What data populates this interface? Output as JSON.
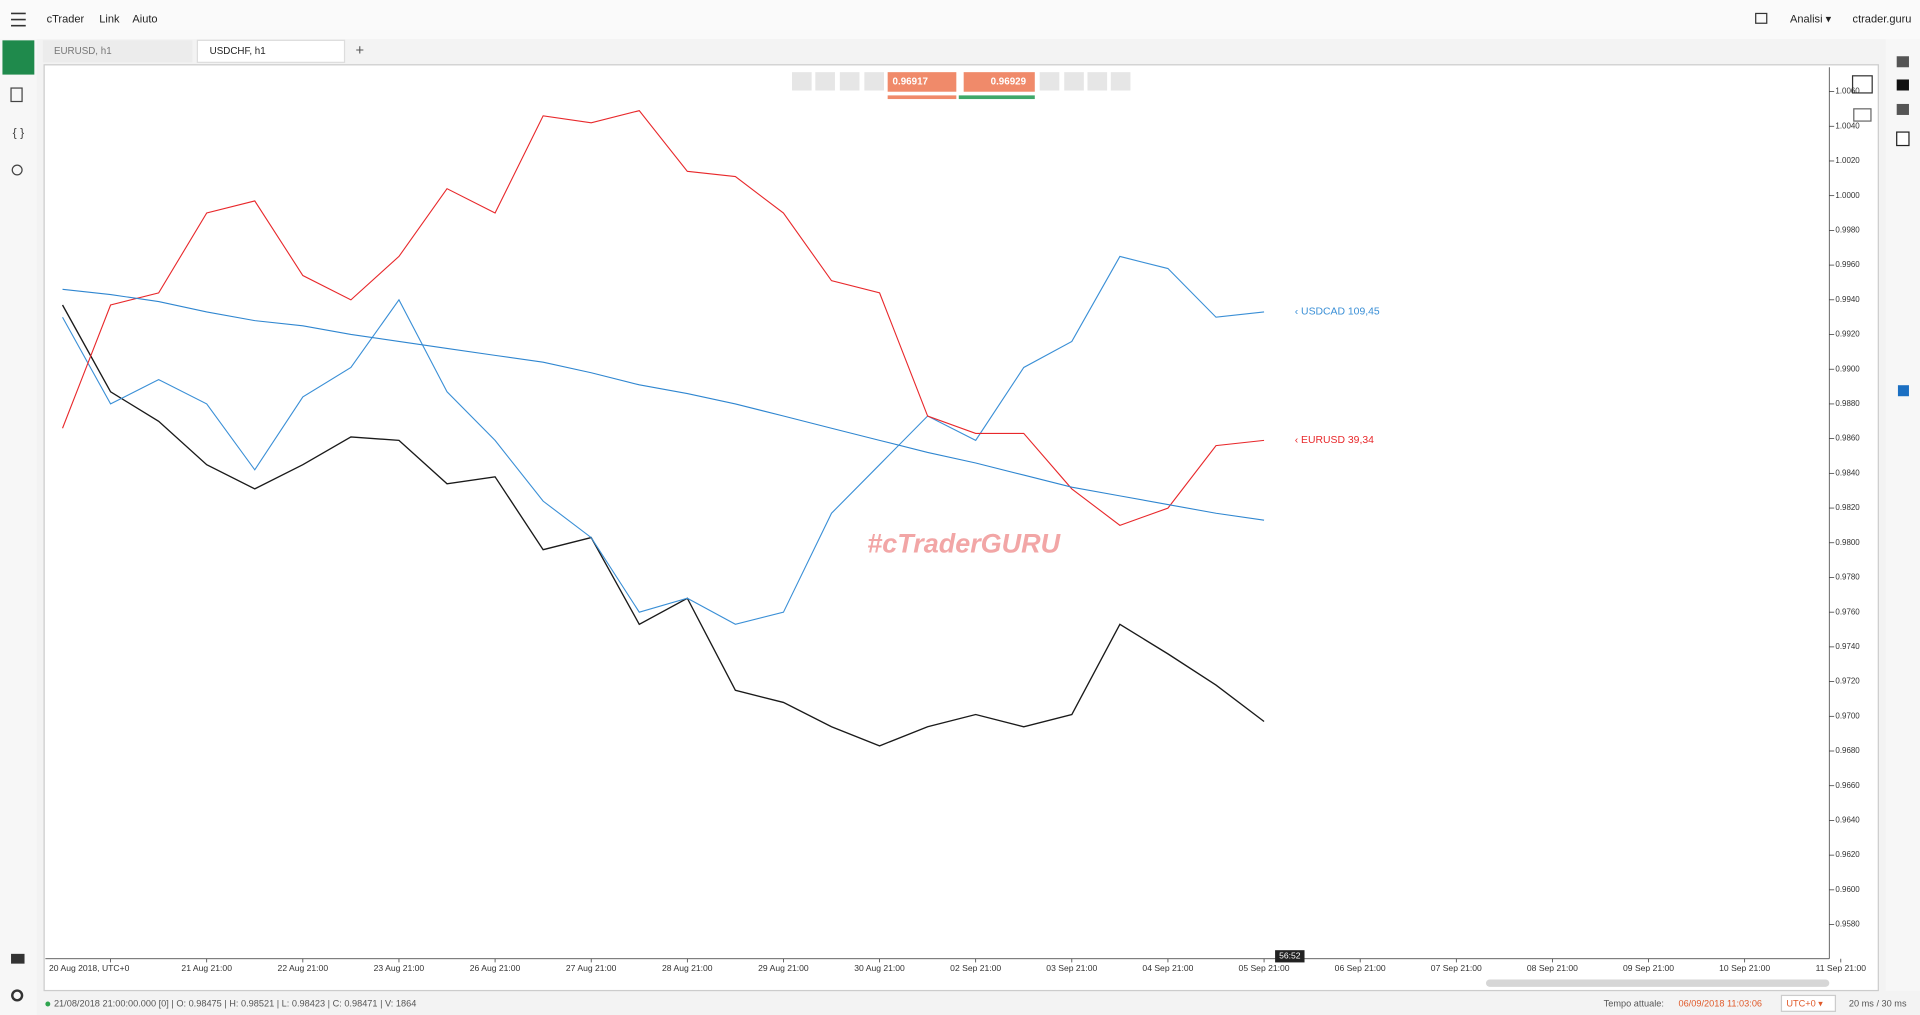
{
  "menu": {
    "items": [
      "cTrader",
      "Link",
      "Aiuto"
    ],
    "analysis": "Analisi ▾",
    "site": "ctrader.guru"
  },
  "tabs": [
    "EURUSD, h1",
    "USDCHF, h1"
  ],
  "toolbar": {
    "sell_price": "0.96917",
    "buy_price": "0.96929"
  },
  "chart_data": {
    "type": "line",
    "categories": [
      null,
      "20 Aug 2018, UTC+0",
      null,
      "21 Aug 21:00",
      null,
      "22 Aug 21:00",
      null,
      "23 Aug 21:00",
      null,
      "26 Aug 21:00",
      null,
      "27 Aug 21:00",
      null,
      "28 Aug 21:00",
      null,
      "29 Aug 21:00",
      null,
      "30 Aug 21:00",
      null,
      "02 Sep 21:00",
      null,
      "03 Sep 21:00",
      null,
      "04 Sep 21:00",
      null,
      "05 Sep 21:00",
      null,
      "06 Sep 21:00",
      null,
      "07 Sep 21:00",
      null,
      "08 Sep 21:00",
      null,
      "09 Sep 21:00",
      null,
      "10 Sep 21:00",
      null,
      "11 Sep 21:00"
    ],
    "series": [
      {
        "color": "#1a1a1a",
        "values": [
          0.9937,
          0.9887,
          0.987,
          0.9845,
          0.9831,
          0.9845,
          0.9861,
          0.9859,
          0.9834,
          0.9838,
          0.9796,
          0.9803,
          0.9753,
          0.9768,
          0.9715,
          0.9708,
          0.9694,
          0.9683,
          0.9694,
          0.9701,
          0.9694,
          0.9701,
          0.9753,
          0.9736,
          0.9718,
          0.9697,
          null,
          null,
          null,
          null,
          null,
          null,
          null,
          null,
          null,
          null,
          null,
          null
        ]
      },
      {
        "label": "‹ USDCAD 109,45",
        "color": "#3a8fd6",
        "values": [
          0.993,
          0.988,
          0.9894,
          0.988,
          0.9842,
          0.9884,
          0.9901,
          0.994,
          0.9887,
          0.9859,
          0.9824,
          0.9803,
          0.976,
          0.9768,
          0.9753,
          0.976,
          0.9817,
          0.9845,
          0.9873,
          0.9859,
          0.9901,
          0.9916,
          0.9965,
          0.9958,
          0.993,
          0.9933,
          null,
          null,
          null,
          null,
          null,
          null,
          null,
          null,
          null,
          null,
          null,
          null
        ]
      },
      {
        "label": "‹ EURUSD 39,34",
        "color": "#e8282b",
        "values": [
          0.9866,
          0.9937,
          0.9944,
          0.999,
          0.9997,
          0.9954,
          0.994,
          0.9965,
          1.0004,
          0.999,
          1.0046,
          1.0042,
          1.0049,
          1.0014,
          1.0011,
          0.999,
          0.9951,
          0.9944,
          0.9873,
          0.9863,
          0.9863,
          0.9831,
          0.981,
          0.982,
          0.9856,
          0.9859,
          null,
          null,
          null,
          null,
          null,
          null,
          null,
          null,
          null,
          null,
          null,
          null
        ]
      },
      {
        "color": "#2f86d0",
        "values": [
          0.9946,
          0.9943,
          0.9939,
          0.9933,
          0.9928,
          0.9925,
          0.992,
          0.9916,
          0.9912,
          0.9908,
          0.9904,
          0.9898,
          0.9891,
          0.9886,
          0.988,
          0.9873,
          0.9866,
          0.9859,
          0.9852,
          0.9846,
          0.9839,
          0.9832,
          0.9827,
          0.9822,
          0.9817,
          0.9813,
          null,
          null,
          null,
          null,
          null,
          null,
          null,
          null,
          null,
          null,
          null,
          null
        ]
      }
    ],
    "ylim": [
      0.9561,
      1.0074
    ],
    "yticks": [
      {
        "value": 0.958,
        "label": "0.9580"
      },
      {
        "value": 0.96,
        "label": "0.9600"
      },
      {
        "value": 0.962,
        "label": "0.9620"
      },
      {
        "value": 0.964,
        "label": "0.9640"
      },
      {
        "value": 0.966,
        "label": "0.9660"
      },
      {
        "value": 0.968,
        "label": "0.9680"
      },
      {
        "value": 0.97,
        "label": "0.9700"
      },
      {
        "value": 0.972,
        "label": "0.9720"
      },
      {
        "value": 0.974,
        "label": "0.9740"
      },
      {
        "value": 0.976,
        "label": "0.9760"
      },
      {
        "value": 0.978,
        "label": "0.9780"
      },
      {
        "value": 0.98,
        "label": "0.9800"
      },
      {
        "value": 0.982,
        "label": "0.9820"
      },
      {
        "value": 0.984,
        "label": "0.9840"
      },
      {
        "value": 0.986,
        "label": "0.9860"
      },
      {
        "value": 0.988,
        "label": "0.9880"
      },
      {
        "value": 0.99,
        "label": "0.9900"
      },
      {
        "value": 0.992,
        "label": "0.9920"
      },
      {
        "value": 0.994,
        "label": "0.9940"
      },
      {
        "value": 0.996,
        "label": "0.9960"
      },
      {
        "value": 0.998,
        "label": "0.9980"
      },
      {
        "value": 1,
        "label": "1.0000"
      },
      {
        "value": 1.002,
        "label": "1.0020"
      },
      {
        "value": 1.004,
        "label": "1.0040"
      },
      {
        "value": 1.006,
        "label": "1.0060"
      }
    ],
    "watermark": "#cTraderGURU",
    "time_label": "56:52"
  },
  "status": {
    "bar_info": "21/08/2018 21:00:00.000 [0] | O: 0.98475 | H: 0.98521 | L: 0.98423 | C: 0.98471 | V: 1864",
    "time_caption": "Tempo attuale:",
    "time": "06/09/2018 11:03:06",
    "timezone": "UTC+0 ▾",
    "latency": "20 ms / 30 ms"
  }
}
